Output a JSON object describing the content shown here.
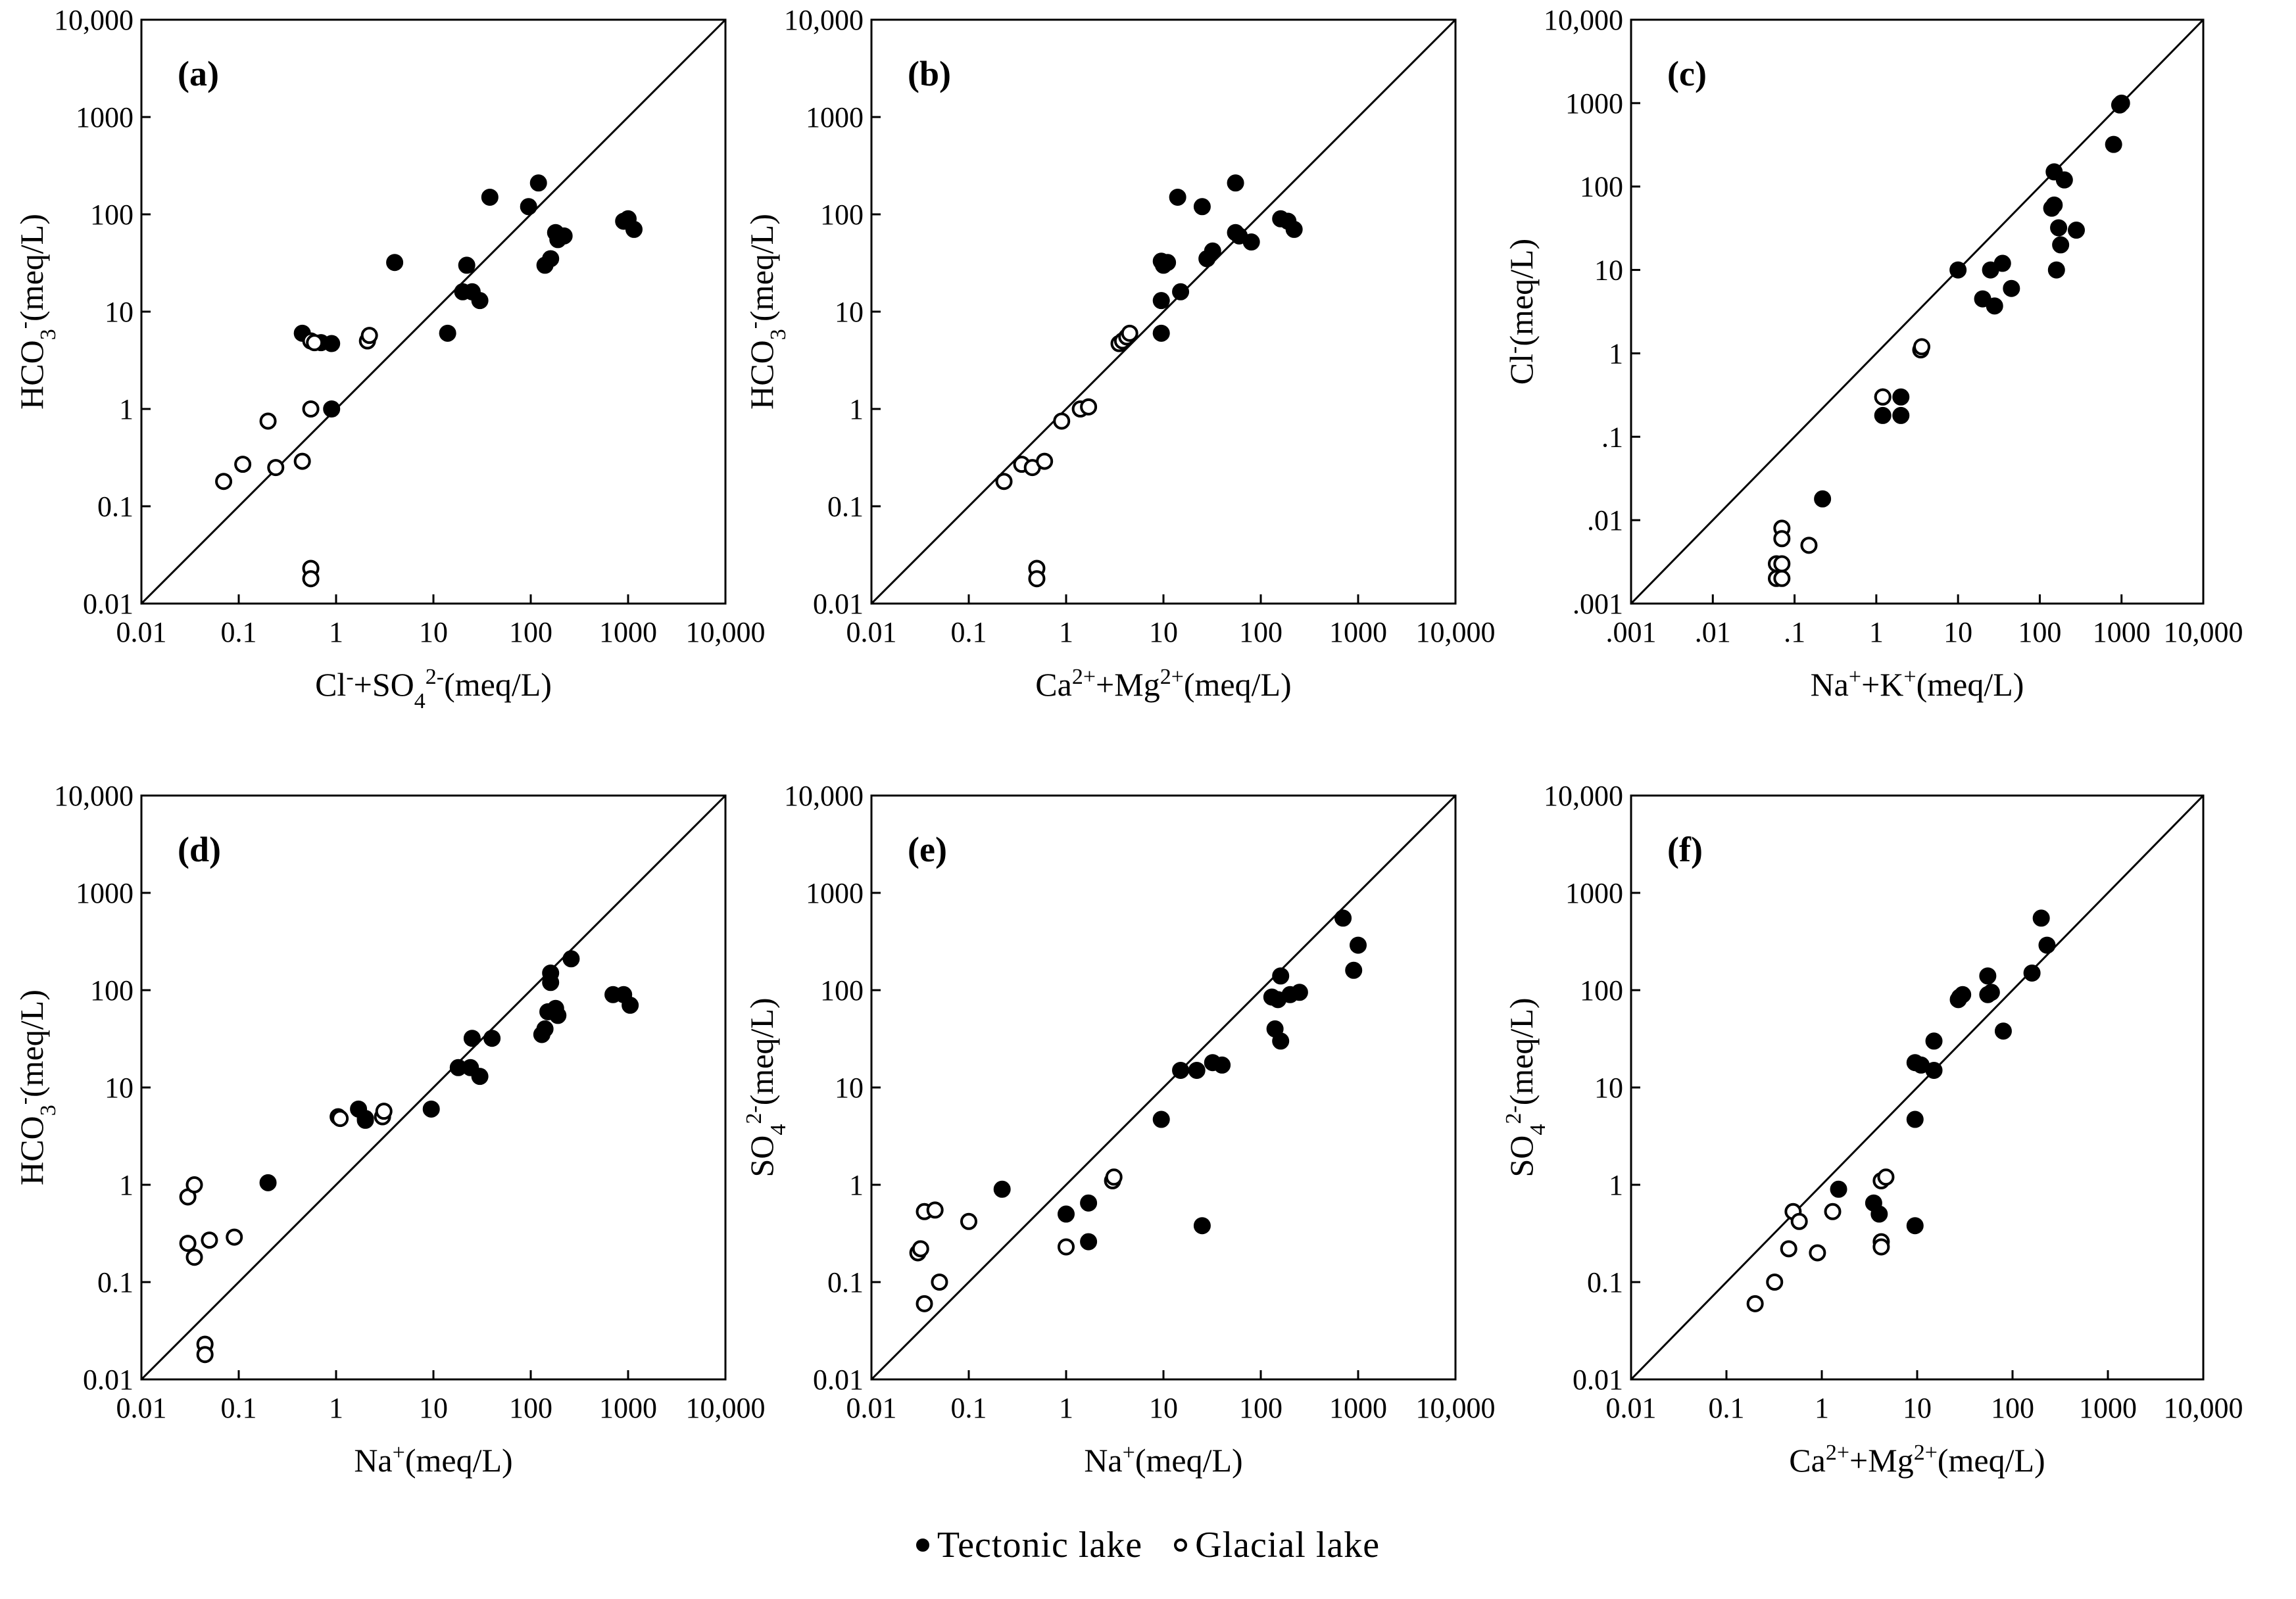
{
  "legend": {
    "tectonic_label": "Tectonic lake",
    "glacial_label": "Glacial lake",
    "tectonic_color": "#000000",
    "glacial_color": "#ffffff"
  },
  "chart_data": [
    {
      "panel": "(a)",
      "type": "scatter",
      "scale": "log-log",
      "xlim": [
        0.01,
        10000
      ],
      "ylim": [
        0.01,
        10000
      ],
      "xticks": [
        "0.01",
        "0.1",
        "1",
        "10",
        "100",
        "1000",
        "10,000"
      ],
      "yticks": [
        "0.01",
        "0.1",
        "1",
        "10",
        "100",
        "1000",
        "10,000"
      ],
      "xlabel": [
        {
          "t": "Cl"
        },
        {
          "t": "-",
          "s": "sup"
        },
        {
          "t": "+SO"
        },
        {
          "t": "4",
          "s": "sub"
        },
        {
          "t": "2-",
          "s": "sup"
        },
        {
          "t": "(meq/L)"
        }
      ],
      "ylabel": [
        {
          "t": "HCO"
        },
        {
          "t": "3",
          "s": "sub"
        },
        {
          "t": "-",
          "s": "sup"
        },
        {
          "t": "(meq/L)"
        }
      ],
      "reference_line": "1:1",
      "series": [
        {
          "name": "Tectonic lake",
          "marker": "filled",
          "points": [
            [
              4,
              32
            ],
            [
              38,
              150
            ],
            [
              120,
              210
            ],
            [
              95,
              120
            ],
            [
              22,
              30
            ],
            [
              20,
              16
            ],
            [
              25,
              16
            ],
            [
              30,
              13
            ],
            [
              14,
              6
            ],
            [
              160,
              35
            ],
            [
              140,
              30
            ],
            [
              180,
              65
            ],
            [
              190,
              55
            ],
            [
              220,
              60
            ],
            [
              900,
              85
            ],
            [
              1000,
              90
            ],
            [
              1150,
              70
            ],
            [
              0.45,
              6
            ],
            [
              0.7,
              4.8
            ],
            [
              0.9,
              4.7
            ],
            [
              0.9,
              1
            ]
          ]
        },
        {
          "name": "Glacial lake",
          "marker": "open",
          "points": [
            [
              0.55,
              5
            ],
            [
              0.6,
              4.8
            ],
            [
              2.1,
              5
            ],
            [
              2.2,
              5.7
            ],
            [
              0.2,
              0.75
            ],
            [
              0.55,
              1
            ],
            [
              0.07,
              0.18
            ],
            [
              0.11,
              0.27
            ],
            [
              0.24,
              0.25
            ],
            [
              0.45,
              0.29
            ],
            [
              0.55,
              0.023
            ],
            [
              0.55,
              0.018
            ]
          ]
        }
      ]
    },
    {
      "panel": "(b)",
      "type": "scatter",
      "scale": "log-log",
      "xlim": [
        0.01,
        10000
      ],
      "ylim": [
        0.01,
        10000
      ],
      "xticks": [
        "0.01",
        "0.1",
        "1",
        "10",
        "100",
        "1000",
        "10,000"
      ],
      "yticks": [
        "0.01",
        "0.1",
        "1",
        "10",
        "100",
        "1000",
        "10,000"
      ],
      "xlabel": [
        {
          "t": "Ca"
        },
        {
          "t": "2+",
          "s": "sup"
        },
        {
          "t": "+Mg"
        },
        {
          "t": "2+",
          "s": "sup"
        },
        {
          "t": "(meq/L)"
        }
      ],
      "ylabel": [
        {
          "t": "HCO"
        },
        {
          "t": "3",
          "s": "sub"
        },
        {
          "t": "-",
          "s": "sup"
        },
        {
          "t": "(meq/L)"
        }
      ],
      "reference_line": "1:1",
      "series": [
        {
          "name": "Tectonic lake",
          "marker": "filled",
          "points": [
            [
              14,
              150
            ],
            [
              55,
              210
            ],
            [
              25,
              120
            ],
            [
              9.5,
              33
            ],
            [
              11,
              32
            ],
            [
              10,
              30
            ],
            [
              15,
              16
            ],
            [
              9.5,
              13
            ],
            [
              9.5,
              6
            ],
            [
              28,
              35
            ],
            [
              32,
              42
            ],
            [
              55,
              65
            ],
            [
              60,
              60
            ],
            [
              80,
              52
            ],
            [
              160,
              90
            ],
            [
              190,
              85
            ],
            [
              220,
              70
            ]
          ]
        },
        {
          "name": "Glacial lake",
          "marker": "open",
          "points": [
            [
              3.5,
              4.7
            ],
            [
              3.8,
              5
            ],
            [
              4.2,
              5.5
            ],
            [
              4.5,
              6
            ],
            [
              1.4,
              1
            ],
            [
              1.7,
              1.05
            ],
            [
              0.9,
              0.75
            ],
            [
              0.23,
              0.18
            ],
            [
              0.35,
              0.27
            ],
            [
              0.45,
              0.25
            ],
            [
              0.6,
              0.29
            ],
            [
              0.5,
              0.023
            ],
            [
              0.5,
              0.018
            ]
          ]
        }
      ]
    },
    {
      "panel": "(c)",
      "type": "scatter",
      "scale": "log-log",
      "xlim": [
        0.001,
        10000
      ],
      "ylim": [
        0.001,
        10000
      ],
      "xticks": [
        ".001",
        ".01",
        ".1",
        "1",
        "10",
        "100",
        "1000",
        "10,000"
      ],
      "yticks": [
        ".001",
        ".01",
        ".1",
        "1",
        "10",
        "100",
        "1000",
        "10,000"
      ],
      "xlabel": [
        {
          "t": "Na"
        },
        {
          "t": "+",
          "s": "sup"
        },
        {
          "t": "+K"
        },
        {
          "t": "+",
          "s": "sup"
        },
        {
          "t": "(meq/L)"
        }
      ],
      "ylabel": [
        {
          "t": "Cl"
        },
        {
          "t": "-",
          "s": "sup"
        },
        {
          "t": "(meq/L)"
        }
      ],
      "reference_line": "1:1",
      "series": [
        {
          "name": "Tectonic lake",
          "marker": "filled",
          "points": [
            [
              950,
              950
            ],
            [
              1000,
              1000
            ],
            [
              800,
              320
            ],
            [
              150,
              150
            ],
            [
              200,
              120
            ],
            [
              140,
              55
            ],
            [
              150,
              60
            ],
            [
              170,
              32
            ],
            [
              180,
              20
            ],
            [
              160,
              10
            ],
            [
              280,
              30
            ],
            [
              25,
              10
            ],
            [
              35,
              12
            ],
            [
              20,
              4.5
            ],
            [
              28,
              3.7
            ],
            [
              45,
              6
            ],
            [
              10,
              10
            ],
            [
              1.2,
              0.3
            ],
            [
              2,
              0.3
            ],
            [
              1.2,
              0.18
            ],
            [
              2,
              0.18
            ],
            [
              0.22,
              0.018
            ]
          ]
        },
        {
          "name": "Glacial lake",
          "marker": "open",
          "points": [
            [
              3.5,
              1.1
            ],
            [
              3.6,
              1.2
            ],
            [
              1.2,
              0.3
            ],
            [
              0.07,
              0.008
            ],
            [
              0.07,
              0.006
            ],
            [
              0.15,
              0.005
            ],
            [
              0.06,
              0.003
            ],
            [
              0.07,
              0.003
            ],
            [
              0.06,
              0.002
            ],
            [
              0.07,
              0.002
            ]
          ]
        }
      ]
    },
    {
      "panel": "(d)",
      "type": "scatter",
      "scale": "log-log",
      "xlim": [
        0.01,
        10000
      ],
      "ylim": [
        0.01,
        10000
      ],
      "xticks": [
        "0.01",
        "0.1",
        "1",
        "10",
        "100",
        "1000",
        "10,000"
      ],
      "yticks": [
        "0.01",
        "0.1",
        "1",
        "10",
        "100",
        "1000",
        "10,000"
      ],
      "xlabel": [
        {
          "t": "Na"
        },
        {
          "t": "+",
          "s": "sup"
        },
        {
          "t": "(meq/L)"
        }
      ],
      "ylabel": [
        {
          "t": "HCO"
        },
        {
          "t": "3",
          "s": "sub"
        },
        {
          "t": "-",
          "s": "sup"
        },
        {
          "t": "(meq/L)"
        }
      ],
      "reference_line": "1:1",
      "series": [
        {
          "name": "Tectonic lake",
          "marker": "filled",
          "points": [
            [
              260,
              210
            ],
            [
              160,
              150
            ],
            [
              160,
              120
            ],
            [
              150,
              60
            ],
            [
              130,
              35
            ],
            [
              140,
              40
            ],
            [
              180,
              65
            ],
            [
              190,
              55
            ],
            [
              25,
              32
            ],
            [
              40,
              32
            ],
            [
              18,
              16
            ],
            [
              24,
              16
            ],
            [
              30,
              13
            ],
            [
              9.5,
              6
            ],
            [
              700,
              90
            ],
            [
              900,
              90
            ],
            [
              1050,
              70
            ],
            [
              1.7,
              6
            ],
            [
              2,
              4.8
            ],
            [
              2,
              4.6
            ],
            [
              0.2,
              1.05
            ]
          ]
        },
        {
          "name": "Glacial lake",
          "marker": "open",
          "points": [
            [
              1.05,
              5
            ],
            [
              1.1,
              4.8
            ],
            [
              3,
              5
            ],
            [
              3.1,
              5.7
            ],
            [
              0.03,
              0.75
            ],
            [
              0.035,
              1
            ],
            [
              0.03,
              0.25
            ],
            [
              0.035,
              0.18
            ],
            [
              0.05,
              0.27
            ],
            [
              0.09,
              0.29
            ],
            [
              0.045,
              0.023
            ],
            [
              0.045,
              0.018
            ]
          ]
        }
      ]
    },
    {
      "panel": "(e)",
      "type": "scatter",
      "scale": "log-log",
      "xlim": [
        0.01,
        10000
      ],
      "ylim": [
        0.01,
        10000
      ],
      "xticks": [
        "0.01",
        "0.1",
        "1",
        "10",
        "100",
        "1000",
        "10,000"
      ],
      "yticks": [
        "0.01",
        "0.1",
        "1",
        "10",
        "100",
        "1000",
        "10,000"
      ],
      "xlabel": [
        {
          "t": "Na"
        },
        {
          "t": "+",
          "s": "sup"
        },
        {
          "t": "(meq/L)"
        }
      ],
      "ylabel": [
        {
          "t": "SO"
        },
        {
          "t": "4",
          "s": "sub"
        },
        {
          "t": "2-",
          "s": "sup"
        },
        {
          "t": "(meq/L)"
        }
      ],
      "reference_line": "1:1",
      "series": [
        {
          "name": "Tectonic lake",
          "marker": "filled",
          "points": [
            [
              700,
              550
            ],
            [
              1000,
              290
            ],
            [
              900,
              160
            ],
            [
              160,
              140
            ],
            [
              130,
              85
            ],
            [
              150,
              80
            ],
            [
              200,
              90
            ],
            [
              250,
              95
            ],
            [
              140,
              40
            ],
            [
              160,
              30
            ],
            [
              32,
              18
            ],
            [
              40,
              17
            ],
            [
              15,
              15
            ],
            [
              22,
              15
            ],
            [
              9.5,
              4.7
            ],
            [
              0.22,
              0.9
            ],
            [
              1.7,
              0.65
            ],
            [
              1,
              0.5
            ],
            [
              1.7,
              0.26
            ],
            [
              25,
              0.38
            ]
          ]
        },
        {
          "name": "Glacial lake",
          "marker": "open",
          "points": [
            [
              3,
              1.1
            ],
            [
              3.1,
              1.2
            ],
            [
              0.035,
              0.53
            ],
            [
              0.045,
              0.55
            ],
            [
              0.1,
              0.42
            ],
            [
              1,
              0.23
            ],
            [
              0.03,
              0.2
            ],
            [
              0.032,
              0.22
            ],
            [
              0.05,
              0.1
            ],
            [
              0.035,
              0.06
            ]
          ]
        }
      ]
    },
    {
      "panel": "(f)",
      "type": "scatter",
      "scale": "log-log",
      "xlim": [
        0.01,
        10000
      ],
      "ylim": [
        0.01,
        10000
      ],
      "xticks": [
        "0.01",
        "0.1",
        "1",
        "10",
        "100",
        "1000",
        "10,000"
      ],
      "yticks": [
        "0.01",
        "0.1",
        "1",
        "10",
        "100",
        "1000",
        "10,000"
      ],
      "xlabel": [
        {
          "t": "Ca"
        },
        {
          "t": "2+",
          "s": "sup"
        },
        {
          "t": "+Mg"
        },
        {
          "t": "2+",
          "s": "sup"
        },
        {
          "t": "(meq/L)"
        }
      ],
      "ylabel": [
        {
          "t": "SO"
        },
        {
          "t": "4",
          "s": "sub"
        },
        {
          "t": "2-",
          "s": "sup"
        },
        {
          "t": "(meq/L)"
        }
      ],
      "reference_line": "1:1",
      "series": [
        {
          "name": "Tectonic lake",
          "marker": "filled",
          "points": [
            [
              200,
              550
            ],
            [
              230,
              290
            ],
            [
              160,
              150
            ],
            [
              55,
              140
            ],
            [
              30,
              90
            ],
            [
              27,
              80
            ],
            [
              28,
              85
            ],
            [
              55,
              90
            ],
            [
              60,
              95
            ],
            [
              80,
              38
            ],
            [
              15,
              30
            ],
            [
              9.5,
              18
            ],
            [
              11,
              17
            ],
            [
              15,
              15
            ],
            [
              9.5,
              4.7
            ],
            [
              1.5,
              0.9
            ],
            [
              3.5,
              0.65
            ],
            [
              4,
              0.5
            ],
            [
              9.5,
              0.38
            ]
          ]
        },
        {
          "name": "Glacial lake",
          "marker": "open",
          "points": [
            [
              4.2,
              1.1
            ],
            [
              4.7,
              1.2
            ],
            [
              0.5,
              0.53
            ],
            [
              0.58,
              0.42
            ],
            [
              1.3,
              0.53
            ],
            [
              4.2,
              0.26
            ],
            [
              4.2,
              0.23
            ],
            [
              0.9,
              0.2
            ],
            [
              0.45,
              0.22
            ],
            [
              0.32,
              0.1
            ],
            [
              0.2,
              0.06
            ]
          ]
        }
      ]
    }
  ]
}
